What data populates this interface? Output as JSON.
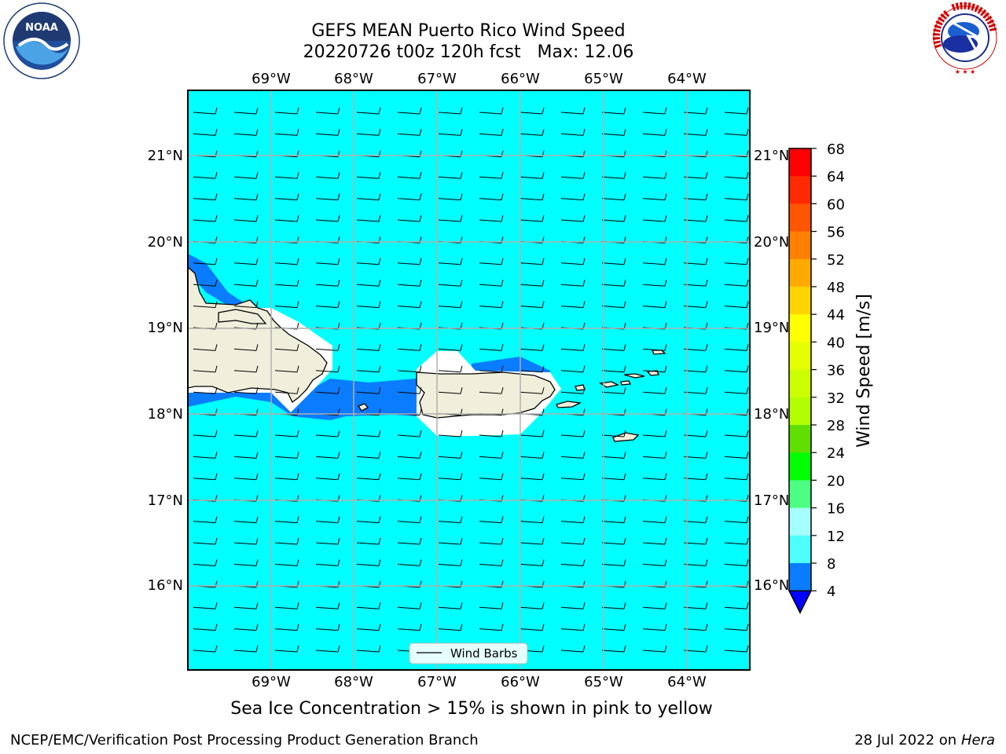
{
  "title": {
    "line1": "GEFS MEAN Puerto Rico Wind Speed",
    "line2": "20220726 t00z 120h fcst   Max: 12.06"
  },
  "map": {
    "lon_labels": [
      "69°W",
      "68°W",
      "67°W",
      "66°W",
      "65°W",
      "64°W"
    ],
    "lat_labels": [
      "21°N",
      "20°N",
      "19°N",
      "18°N",
      "17°N",
      "16°N"
    ],
    "lon_range": [
      -70.0,
      -63.25
    ],
    "lat_range": [
      15.0,
      21.75
    ],
    "ocean_color": "#00ffff",
    "land_color": "#efefdb",
    "low_wind_color": "#0a7cff",
    "legend_label": "Wind Barbs"
  },
  "colorbar": {
    "label": "Wind Speed [m/s]",
    "ticks": [
      "68",
      "64",
      "60",
      "56",
      "52",
      "48",
      "44",
      "40",
      "36",
      "32",
      "28",
      "24",
      "20",
      "16",
      "12",
      "8",
      "4"
    ],
    "colors": [
      "#ff0000",
      "#ff2a00",
      "#ff5500",
      "#ff8000",
      "#ffaa00",
      "#ffd400",
      "#ffff00",
      "#e6ff00",
      "#ccff00",
      "#b3ff00",
      "#5fdf00",
      "#00ff00",
      "#4cff80",
      "#a6ffff",
      "#4dffff",
      "#00ffff",
      "#0a7cff"
    ],
    "under_color": "#0000ff"
  },
  "caption": "Sea Ice Concentration > 15% is shown in pink to yellow",
  "footer": {
    "left": "NCEP/EMC/Verification Post Processing Product Generation Branch",
    "right_date": "28 Jul 2022 on ",
    "right_machine": "Hera"
  },
  "logos": {
    "noaa_text": "NOAA",
    "nws_text": "NATIONAL WEATHER SERVICE"
  }
}
